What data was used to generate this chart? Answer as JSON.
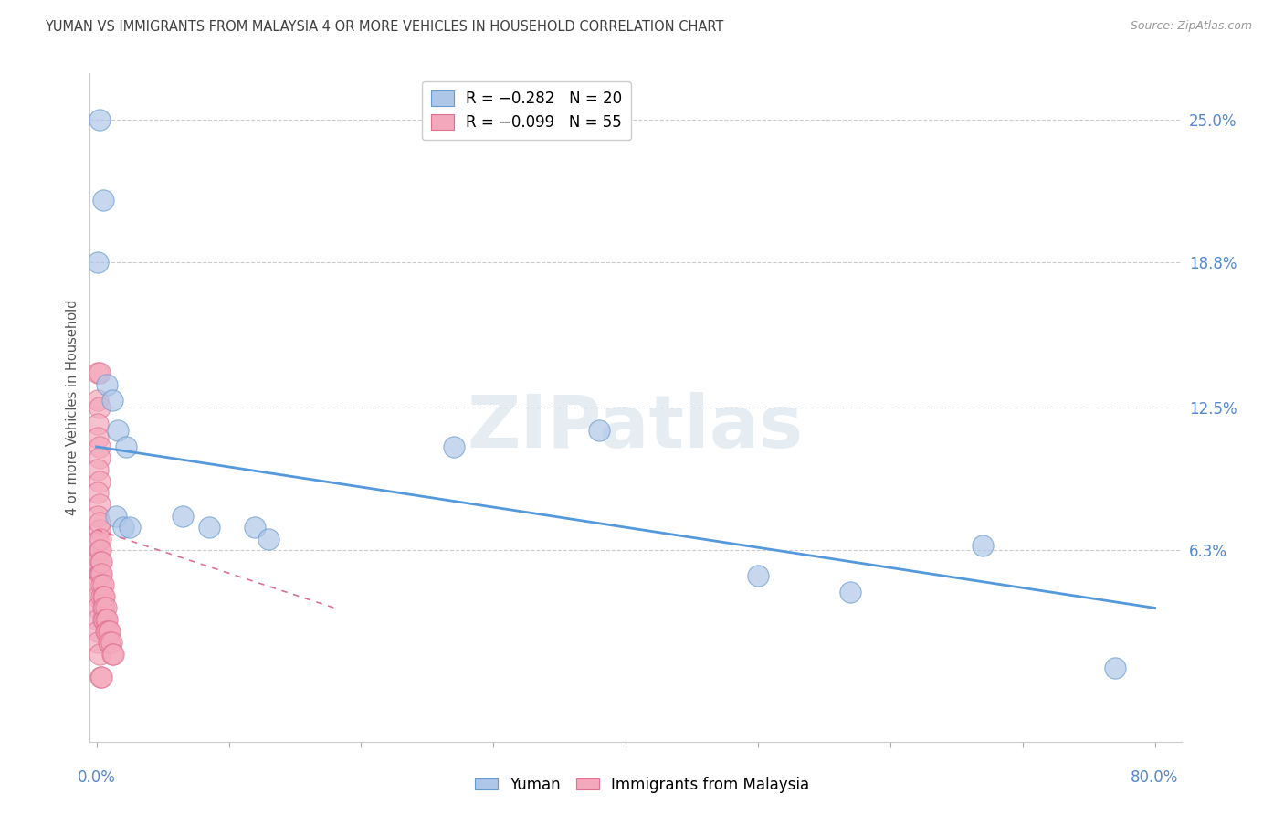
{
  "title": "YUMAN VS IMMIGRANTS FROM MALAYSIA 4 OR MORE VEHICLES IN HOUSEHOLD CORRELATION CHART",
  "source": "Source: ZipAtlas.com",
  "ylabel": "4 or more Vehicles in Household",
  "ytick_labels": [
    "25.0%",
    "18.8%",
    "12.5%",
    "6.3%"
  ],
  "ytick_values": [
    0.25,
    0.188,
    0.125,
    0.063
  ],
  "xlim": [
    -0.005,
    0.82
  ],
  "ylim": [
    -0.02,
    0.27
  ],
  "watermark": "ZIPatlas",
  "yuman_color": "#aec6e8",
  "immigrants_color": "#f4a8bc",
  "yuman_scatter": [
    [
      0.002,
      0.25
    ],
    [
      0.005,
      0.215
    ],
    [
      0.001,
      0.188
    ],
    [
      0.008,
      0.135
    ],
    [
      0.012,
      0.128
    ],
    [
      0.016,
      0.115
    ],
    [
      0.022,
      0.108
    ],
    [
      0.015,
      0.078
    ],
    [
      0.02,
      0.073
    ],
    [
      0.025,
      0.073
    ],
    [
      0.065,
      0.078
    ],
    [
      0.085,
      0.073
    ],
    [
      0.12,
      0.073
    ],
    [
      0.13,
      0.068
    ],
    [
      0.27,
      0.108
    ],
    [
      0.38,
      0.115
    ],
    [
      0.5,
      0.052
    ],
    [
      0.57,
      0.045
    ],
    [
      0.67,
      0.065
    ],
    [
      0.77,
      0.012
    ]
  ],
  "immigrants_scatter": [
    [
      0.001,
      0.14
    ],
    [
      0.002,
      0.14
    ],
    [
      0.001,
      0.128
    ],
    [
      0.002,
      0.125
    ],
    [
      0.001,
      0.118
    ],
    [
      0.001,
      0.112
    ],
    [
      0.002,
      0.108
    ],
    [
      0.002,
      0.103
    ],
    [
      0.001,
      0.098
    ],
    [
      0.002,
      0.093
    ],
    [
      0.001,
      0.088
    ],
    [
      0.002,
      0.083
    ],
    [
      0.001,
      0.078
    ],
    [
      0.002,
      0.072
    ],
    [
      0.001,
      0.067
    ],
    [
      0.002,
      0.063
    ],
    [
      0.001,
      0.058
    ],
    [
      0.002,
      0.053
    ],
    [
      0.001,
      0.048
    ],
    [
      0.001,
      0.043
    ],
    [
      0.001,
      0.038
    ],
    [
      0.001,
      0.033
    ],
    [
      0.001,
      0.028
    ],
    [
      0.001,
      0.023
    ],
    [
      0.002,
      0.018
    ],
    [
      0.003,
      0.008
    ],
    [
      0.004,
      0.008
    ],
    [
      0.002,
      0.075
    ],
    [
      0.003,
      0.068
    ],
    [
      0.003,
      0.063
    ],
    [
      0.003,
      0.058
    ],
    [
      0.003,
      0.053
    ],
    [
      0.004,
      0.058
    ],
    [
      0.004,
      0.053
    ],
    [
      0.004,
      0.048
    ],
    [
      0.004,
      0.043
    ],
    [
      0.005,
      0.048
    ],
    [
      0.005,
      0.043
    ],
    [
      0.005,
      0.038
    ],
    [
      0.005,
      0.033
    ],
    [
      0.006,
      0.043
    ],
    [
      0.006,
      0.038
    ],
    [
      0.006,
      0.033
    ],
    [
      0.007,
      0.038
    ],
    [
      0.007,
      0.033
    ],
    [
      0.007,
      0.028
    ],
    [
      0.008,
      0.033
    ],
    [
      0.008,
      0.028
    ],
    [
      0.009,
      0.028
    ],
    [
      0.009,
      0.023
    ],
    [
      0.01,
      0.028
    ],
    [
      0.01,
      0.023
    ],
    [
      0.011,
      0.023
    ],
    [
      0.012,
      0.018
    ],
    [
      0.013,
      0.018
    ]
  ],
  "yuman_trend_x": [
    0.0,
    0.8
  ],
  "yuman_trend_y": [
    0.108,
    0.038
  ],
  "immigrants_trend_x": [
    0.0,
    0.18
  ],
  "immigrants_trend_y": [
    0.072,
    0.038
  ],
  "background_color": "#ffffff",
  "grid_color": "#cccccc",
  "title_color": "#404040",
  "axis_label_color": "#555555",
  "tick_label_color": "#5588cc"
}
